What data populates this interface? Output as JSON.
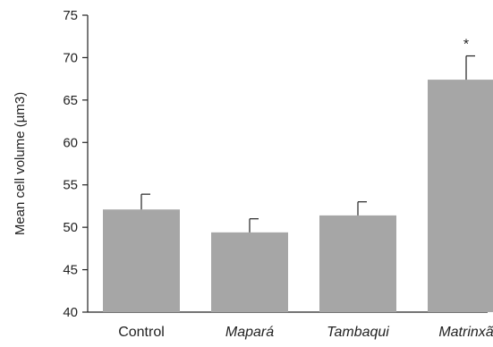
{
  "chart_data": {
    "type": "bar",
    "categories": [
      "Control",
      "Mapará",
      "Tambaqui",
      "Matrinxã"
    ],
    "italic_categories": [
      false,
      true,
      true,
      true
    ],
    "values": [
      52.1,
      49.4,
      51.4,
      67.4
    ],
    "errors": [
      1.8,
      1.6,
      1.6,
      2.8
    ],
    "annotations": [
      "",
      "",
      "",
      "*"
    ],
    "ylabel": "Mean cell volume (µm3)",
    "xlabel": "",
    "title": "",
    "ylim": [
      40,
      75
    ],
    "yticks": [
      40,
      45,
      50,
      55,
      60,
      65,
      70,
      75
    ],
    "grid": false,
    "bar_color": "#a6a6a6",
    "axis_color": "#222222"
  }
}
